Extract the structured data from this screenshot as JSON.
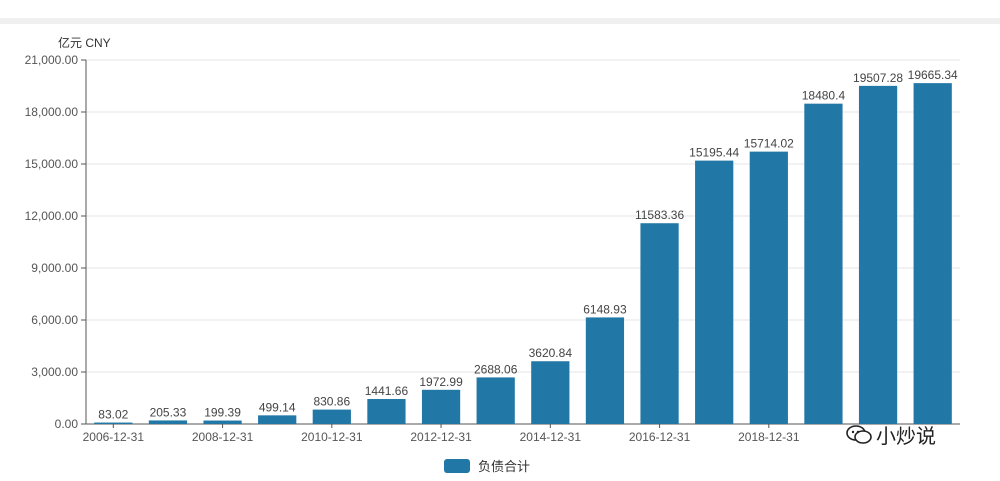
{
  "chart_data": {
    "type": "bar",
    "unit_label": "亿元  CNY",
    "categories": [
      "2006-12-31",
      "2007-12-31",
      "2008-12-31",
      "2009-12-31",
      "2010-12-31",
      "2011-12-31",
      "2012-12-31",
      "2013-12-31",
      "2014-12-31",
      "2015-12-31",
      "2016-12-31",
      "2017-12-31",
      "2018-12-31",
      "2019-12-31",
      "2020-12-31",
      "2021-12-31"
    ],
    "x_tick_labels": [
      "2006-12-31",
      "2008-12-31",
      "2010-12-31",
      "2012-12-31",
      "2014-12-31",
      "2016-12-31",
      "2018-12-31"
    ],
    "values": [
      83.02,
      205.33,
      199.39,
      499.14,
      830.86,
      1441.66,
      1972.99,
      2688.06,
      3620.84,
      6148.93,
      11583.36,
      15195.44,
      15714.02,
      18480.4,
      19507.28,
      19665.34
    ],
    "value_labels": [
      "83.02",
      "205.33",
      "199.39",
      "499.14",
      "830.86",
      "1441.66",
      "1972.99",
      "2688.06",
      "3620.84",
      "6148.93",
      "11583.36",
      "15195.44",
      "15714.02",
      "18480.4",
      "19507.28",
      "19665.34"
    ],
    "series": [
      {
        "name": "负债合计"
      }
    ],
    "ylim": [
      0,
      21000
    ],
    "y_ticks": [
      0,
      3000,
      6000,
      9000,
      12000,
      15000,
      18000,
      21000
    ],
    "y_tick_labels": [
      "0.00",
      "3,000.00",
      "6,000.00",
      "9,000.00",
      "12,000.00",
      "15,000.00",
      "18,000.00",
      "21,000.00"
    ],
    "grid": true,
    "legend_position": "bottom-center",
    "bar_color": "#2177a5"
  },
  "watermark": {
    "text": "小炒说"
  }
}
